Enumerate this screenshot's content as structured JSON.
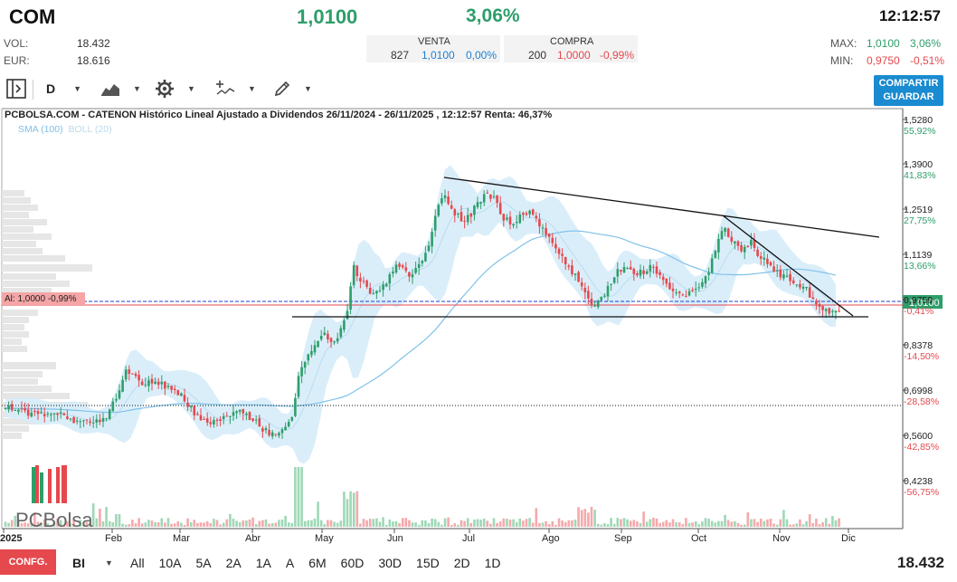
{
  "header": {
    "ticker": "COM",
    "price": "1,0100",
    "change_pct": "3,06%",
    "time": "12:12:57",
    "vol_label": "VOL:",
    "vol_value": "18.432",
    "eur_label": "EUR:",
    "eur_value": "18.616",
    "venta_label": "VENTA",
    "venta_qty": "827",
    "venta_price": "1,0100",
    "venta_pct": "0,00%",
    "compra_label": "COMPRA",
    "compra_qty": "200",
    "compra_price": "1,0000",
    "compra_pct": "-0,99%",
    "max_label": "MAX:",
    "max_value": "1,0100",
    "max_pct": "3,06%",
    "min_label": "MIN:",
    "min_value": "0,9750",
    "min_pct": "-0,51%"
  },
  "toolbar": {
    "period": "D",
    "share_line1": "COMPARTIR",
    "share_line2": "GUARDAR"
  },
  "chart": {
    "title": "PCBOLSA.COM - CATENON Histórico Lineal Ajustado a Dividendos 26/11/2024 - 26/11/2025 , 12:12:57 Renta: 46,37%",
    "indicator_sma": "SMA (100)",
    "indicator_boll": "BOLL (20)",
    "alert_label": "Al: 1,0000 -0,99%",
    "last_price_tag": "1,0100",
    "logo_text": "PCBolsa",
    "colors": {
      "up": "#2e9e6a",
      "down": "#e5484d",
      "band": "#d6ecfa",
      "sma": "#7fc2e8"
    }
  },
  "chart_data": {
    "type": "candlestick",
    "y_ticks": [
      {
        "price": "1,5280",
        "pct": "55,92%"
      },
      {
        "price": "1,3900",
        "pct": "41,83%"
      },
      {
        "price": "1,2519",
        "pct": "27,75%"
      },
      {
        "price": "1,1139",
        "pct": "13,66%"
      },
      {
        "price": "0,9759",
        "pct": "-0,41%"
      },
      {
        "price": "0,8378",
        "pct": "-14,50%"
      },
      {
        "price": "0,6998",
        "pct": "-28,58%"
      },
      {
        "price": "0,5600",
        "pct": "-42,85%"
      },
      {
        "price": "0,4238",
        "pct": "-56,75%"
      }
    ],
    "x_labels": [
      "2025",
      "Feb",
      "Mar",
      "Abr",
      "May",
      "Jun",
      "Jul",
      "Ago",
      "Sep",
      "Oct",
      "Nov",
      "Dic"
    ],
    "ylim": [
      0.42,
      1.55
    ]
  },
  "bottom": {
    "config_label": "CONFG.",
    "chart_mode": "BI",
    "ranges": [
      "All",
      "10A",
      "5A",
      "2A",
      "1A",
      "A",
      "6M",
      "60D",
      "30D",
      "15D",
      "2D",
      "1D"
    ],
    "volume": "18.432"
  }
}
